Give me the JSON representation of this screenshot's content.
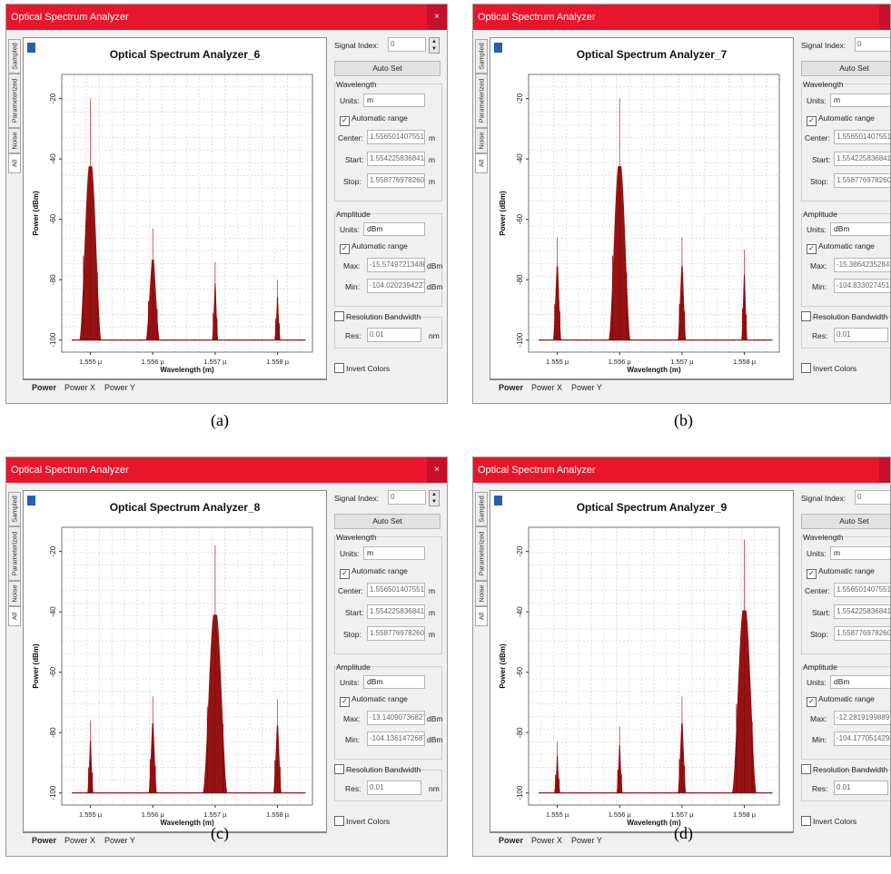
{
  "window_title": "Optical Spectrum Analyzer",
  "close_glyph": "×",
  "side_tabs": [
    "Sampled",
    "Parameterized",
    "Noise",
    "All"
  ],
  "bottom_tabs": [
    "Power",
    "Power X",
    "Power Y"
  ],
  "controls": {
    "signal_index_label": "Signal Index:",
    "signal_index_value": "0",
    "auto_set": "Auto Set",
    "wavelength_group": "Wavelength",
    "units_label": "Units:",
    "wavelength_units": "m",
    "automatic_range": "Automatic range",
    "center_label": "Center:",
    "start_label": "Start:",
    "stop_label": "Stop:",
    "center_value": "1.556501407551",
    "start_value": "1.554225836841",
    "stop_value": "1.558776978260",
    "unit_m": "m",
    "amplitude_group": "Amplitude",
    "amplitude_units": "dBm",
    "max_label": "Max:",
    "min_label": "Min:",
    "unit_dbm": "dBm",
    "resolution_bandwidth": "Resolution Bandwidth",
    "res_label": "Res:",
    "res_value": "0.01",
    "res_unit": "nm",
    "invert_colors": "Invert Colors"
  },
  "colors": {
    "titlebar": "#e8162d",
    "trace": "#8b0000",
    "trace_light": "#c85050"
  },
  "panels": [
    {
      "caption": "(a)",
      "plot_title": "Optical Spectrum Analyzer_6",
      "max_value": "-15.57497213488",
      "min_value": "-104.0202394227",
      "chart_data": {
        "type": "line",
        "xlabel": "Wavelength (m)",
        "ylabel": "Power (dBm)",
        "x_ticks": [
          "1.555 µ",
          "1.556 µ",
          "1.557 µ",
          "1.558 µ"
        ],
        "y_ticks": [
          "-20",
          "-40",
          "-60",
          "-80",
          "-100"
        ],
        "xlim": [
          1.55454,
          1.55856
        ],
        "ylim": [
          -104,
          -12
        ],
        "noise_floor": -100,
        "peaks": [
          {
            "x": 1.555,
            "y": -20,
            "width": 8e-05
          },
          {
            "x": 1.556,
            "y": -63,
            "width": 5e-05
          },
          {
            "x": 1.557,
            "y": -74,
            "width": 2e-05
          },
          {
            "x": 1.558,
            "y": -80,
            "width": 2e-05
          }
        ]
      }
    },
    {
      "caption": "(b)",
      "plot_title": "Optical Spectrum Analyzer_7",
      "max_value": "-15.38642352847",
      "min_value": "-104.8330274514",
      "chart_data": {
        "type": "line",
        "xlabel": "Wavelength (m)",
        "ylabel": "Power (dBm)",
        "x_ticks": [
          "1.555 µ",
          "1.556 µ",
          "1.557 µ",
          "1.558 µ"
        ],
        "y_ticks": [
          "-20",
          "-40",
          "-60",
          "-80",
          "-100"
        ],
        "xlim": [
          1.55454,
          1.55856
        ],
        "ylim": [
          -104,
          -12
        ],
        "noise_floor": -100,
        "peaks": [
          {
            "x": 1.555,
            "y": -66,
            "width": 3e-05
          },
          {
            "x": 1.556,
            "y": -20,
            "width": 8e-05
          },
          {
            "x": 1.557,
            "y": -66,
            "width": 3e-05
          },
          {
            "x": 1.558,
            "y": -70,
            "width": 2e-05
          }
        ]
      }
    },
    {
      "caption": "(c)",
      "plot_title": "Optical Spectrum Analyzer_8",
      "max_value": "-13.14090736827",
      "min_value": "-104.1361472687",
      "chart_data": {
        "type": "line",
        "xlabel": "Wavelength (m)",
        "ylabel": "Power (dBm)",
        "x_ticks": [
          "1.555 µ",
          "1.556 µ",
          "1.557 µ",
          "1.558 µ"
        ],
        "y_ticks": [
          "-20",
          "-40",
          "-60",
          "-80",
          "-100"
        ],
        "xlim": [
          1.55454,
          1.55856
        ],
        "ylim": [
          -104,
          -12
        ],
        "noise_floor": -100,
        "peaks": [
          {
            "x": 1.555,
            "y": -76,
            "width": 2e-05
          },
          {
            "x": 1.556,
            "y": -68,
            "width": 3e-05
          },
          {
            "x": 1.557,
            "y": -18,
            "width": 9e-05
          },
          {
            "x": 1.558,
            "y": -69,
            "width": 3e-05
          }
        ]
      }
    },
    {
      "caption": "(d)",
      "plot_title": "Optical Spectrum Analyzer_9",
      "max_value": "-12.28191998897",
      "min_value": "-104.1770514294",
      "chart_data": {
        "type": "line",
        "xlabel": "Wavelength (m)",
        "ylabel": "Power (dBm)",
        "x_ticks": [
          "1.555 µ",
          "1.556 µ",
          "1.557 µ",
          "1.558 µ"
        ],
        "y_ticks": [
          "-20",
          "-40",
          "-60",
          "-80",
          "-100"
        ],
        "xlim": [
          1.55454,
          1.55856
        ],
        "ylim": [
          -104,
          -12
        ],
        "noise_floor": -100,
        "peaks": [
          {
            "x": 1.555,
            "y": -83,
            "width": 2e-05
          },
          {
            "x": 1.556,
            "y": -78,
            "width": 2e-05
          },
          {
            "x": 1.557,
            "y": -68,
            "width": 3e-05
          },
          {
            "x": 1.558,
            "y": -16,
            "width": 9e-05
          }
        ]
      }
    }
  ]
}
